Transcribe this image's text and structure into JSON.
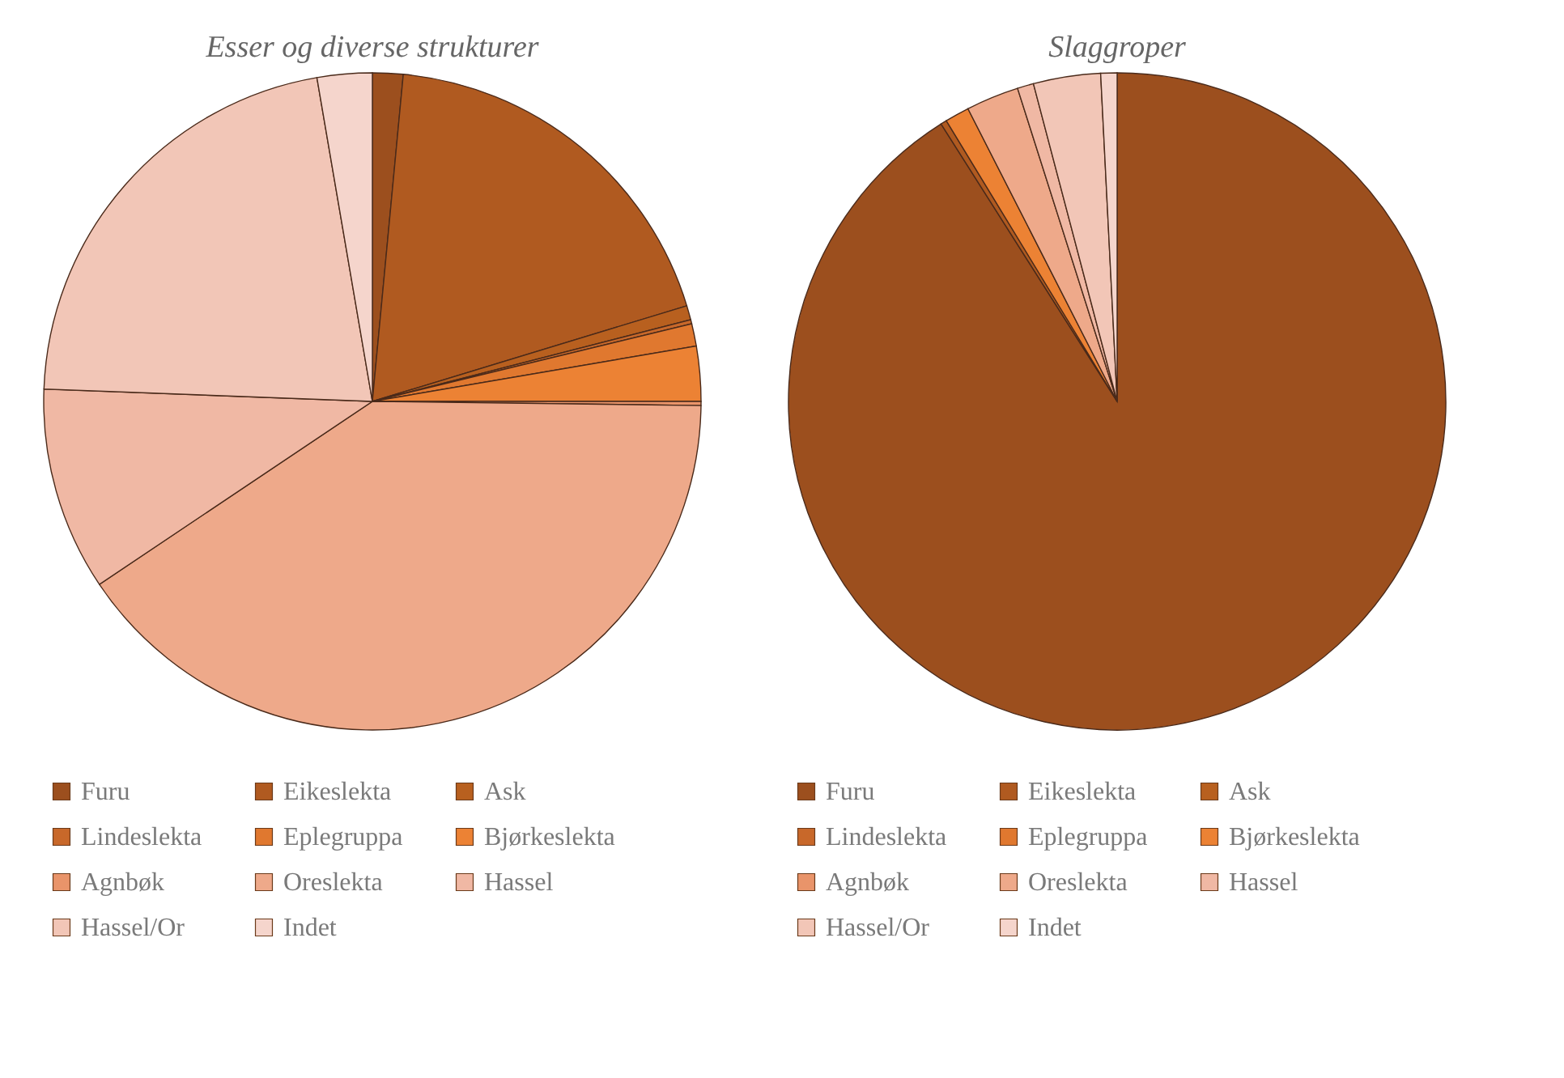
{
  "chart_data": [
    {
      "type": "pie",
      "title": "Esser og diverse strukturer",
      "legend": "bottom",
      "categories": [
        "Furu",
        "Eikeslekta",
        "Ask",
        "Lindeslekta",
        "Eplegruppa",
        "Bjørkeslekta",
        "Agnbøk",
        "Oreslekta",
        "Hassel",
        "Hassel/Or",
        "Indet"
      ],
      "values": [
        1.5,
        18.8,
        0.7,
        0.2,
        1.1,
        2.7,
        0.2,
        40.4,
        10.0,
        21.7,
        2.7
      ],
      "colors": [
        "#9c4f1e",
        "#b05a20",
        "#b8601f",
        "#c8682a",
        "#e0782f",
        "#ec8234",
        "#e9946a",
        "#eea98a",
        "#f0b8a4",
        "#f2c6b7",
        "#f5d5cc"
      ]
    },
    {
      "type": "pie",
      "title": "Slaggroper",
      "legend": "bottom",
      "categories": [
        "Furu",
        "Eikeslekta",
        "Ask",
        "Lindeslekta",
        "Eplegruppa",
        "Bjørkeslekta",
        "Agnbøk",
        "Oreslekta",
        "Hassel",
        "Hassel/Or",
        "Indet"
      ],
      "values": [
        91.0,
        0.3,
        0,
        0,
        0,
        1.2,
        0,
        2.6,
        0.8,
        3.3,
        0.8
      ],
      "colors": [
        "#9c4f1e",
        "#b05a20",
        "#b8601f",
        "#c8682a",
        "#e0782f",
        "#ec8234",
        "#e9946a",
        "#eea98a",
        "#f0b8a4",
        "#f2c6b7",
        "#f5d5cc"
      ]
    }
  ]
}
